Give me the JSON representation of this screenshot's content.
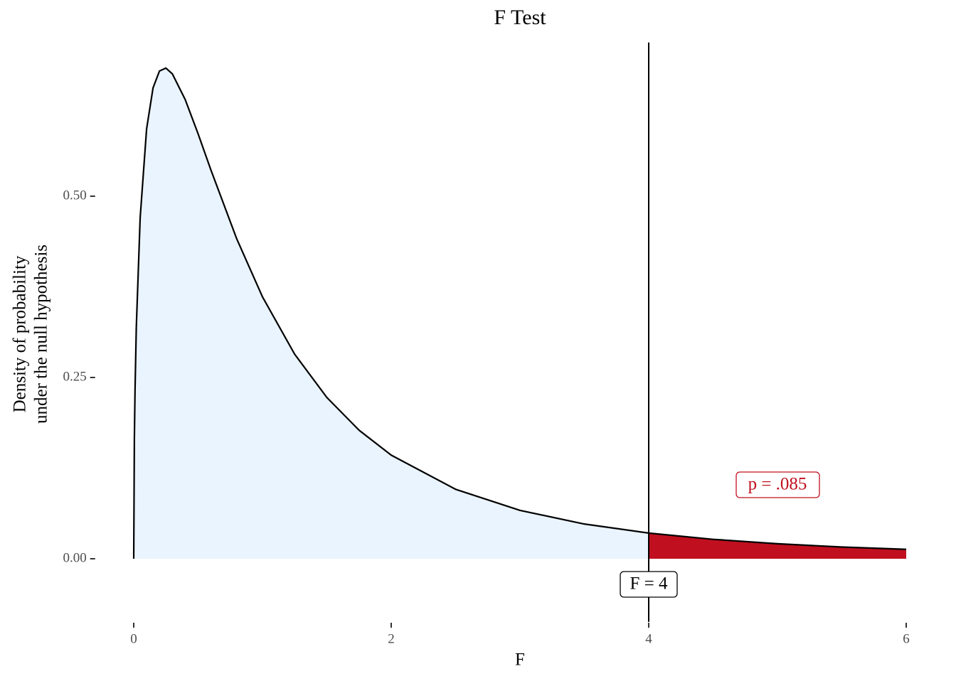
{
  "chart_data": {
    "type": "density",
    "title": "F Test",
    "x_label": "F",
    "y_label": [
      "Density of probability",
      "under the null hypothesis"
    ],
    "x": [
      0,
      0.005,
      0.01,
      0.02,
      0.05,
      0.1,
      0.15,
      0.2,
      0.25,
      0.3,
      0.4,
      0.5,
      0.6,
      0.8,
      1.0,
      1.25,
      1.5,
      1.75,
      2,
      2.5,
      3,
      3.5,
      4,
      4.5,
      5,
      5.5,
      6
    ],
    "values": [
      0,
      0.1654,
      0.2311,
      0.3191,
      0.4703,
      0.5929,
      0.6494,
      0.6727,
      0.6767,
      0.6687,
      0.6332,
      0.586,
      0.5359,
      0.4412,
      0.3612,
      0.2821,
      0.2224,
      0.1773,
      0.1429,
      0.0958,
      0.0667,
      0.0479,
      0.0354,
      0.0268,
      0.0207,
      0.0162,
      0.013
    ],
    "statistic": 4,
    "statistic_label": "F = 4",
    "p_label": "p = .085",
    "fill_color": "#eaf4fe",
    "tail_color": "#c0101f",
    "line_color": "#000000",
    "xlim": [
      -0.3,
      6.0
    ],
    "ylim": [
      -0.087,
      0.712
    ],
    "xticks": [
      0,
      2,
      4,
      6
    ],
    "yticks": [
      {
        "value": 0,
        "label": "0.00"
      },
      {
        "value": 0.25,
        "label": "0.25"
      },
      {
        "value": 0.5,
        "label": "0.50"
      }
    ]
  }
}
